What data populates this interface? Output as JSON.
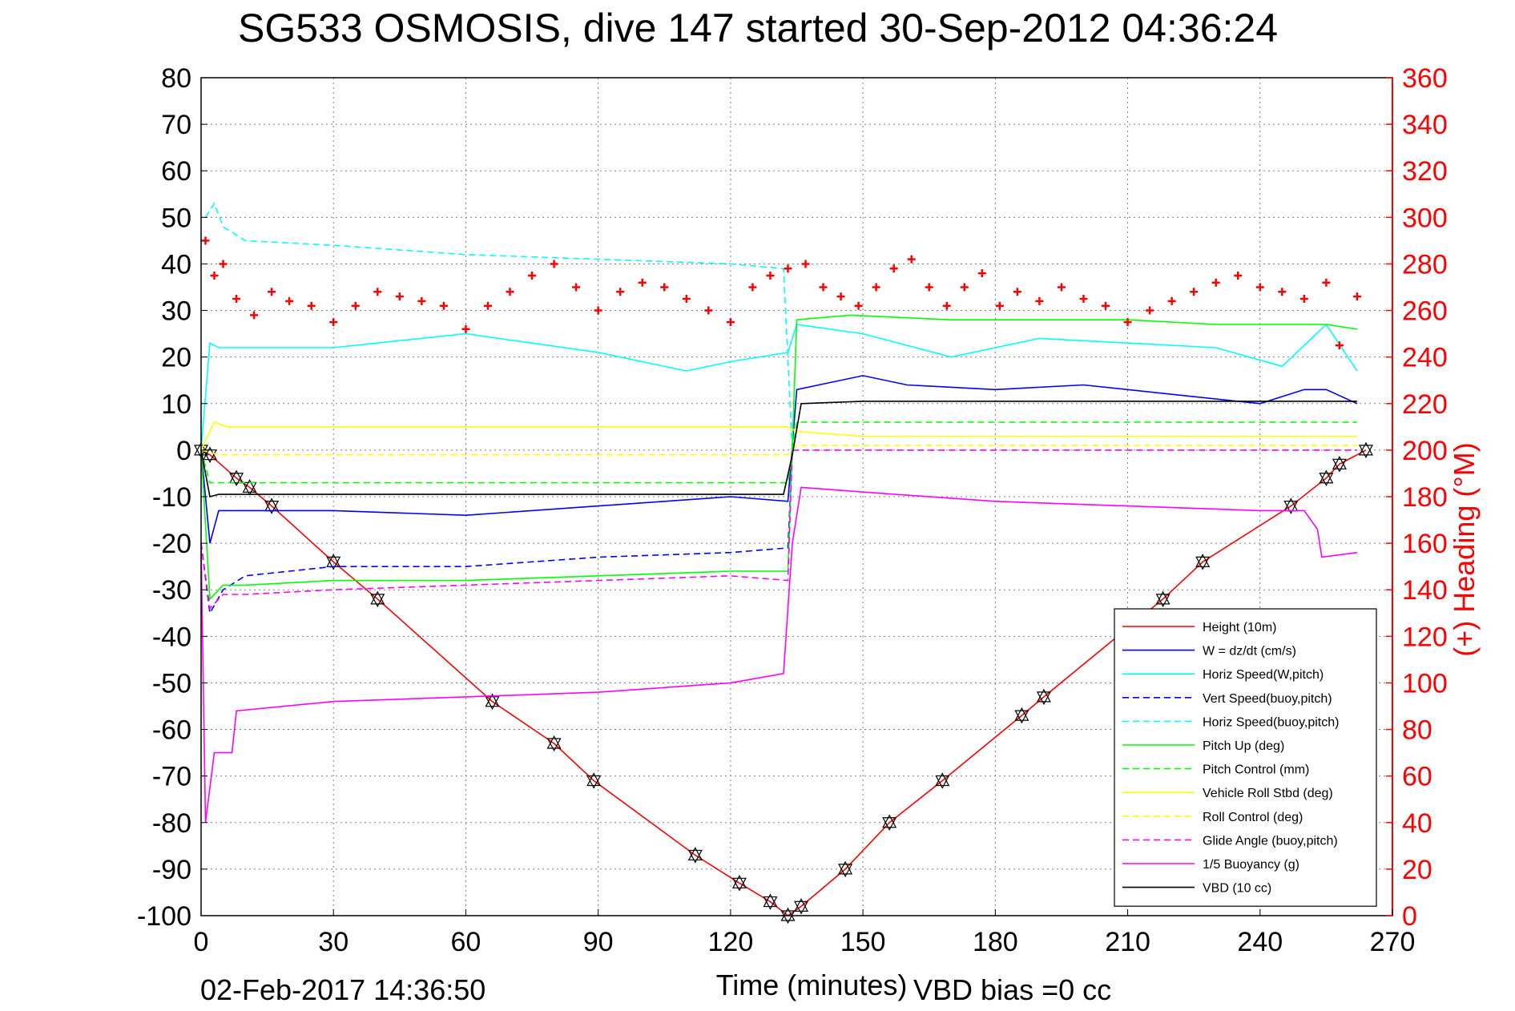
{
  "chart_data": {
    "type": "line",
    "title": "SG533 OSMOSIS, dive 147 started 30-Sep-2012 04:36:24",
    "xlabel": "Time (minutes)",
    "ylabel_right": "(+) Heading (°M)",
    "footer_date": "02-Feb-2017 14:36:50",
    "footer_note": "VBD bias =0 cc",
    "xlim": [
      0,
      270
    ],
    "ylim": [
      -100,
      80
    ],
    "ylim_right": [
      0,
      360
    ],
    "grid": true,
    "legend_position": "bottom-right",
    "x_ticks": [
      "0",
      "30",
      "60",
      "90",
      "120",
      "150",
      "180",
      "210",
      "240",
      "270"
    ],
    "y_ticks": [
      "80",
      "70",
      "60",
      "50",
      "40",
      "30",
      "20",
      "10",
      "0",
      "-10",
      "-20",
      "-30",
      "-40",
      "-50",
      "-60",
      "-70",
      "-80",
      "-90",
      "-100"
    ],
    "y_ticks_right": [
      "360",
      "340",
      "320",
      "300",
      "280",
      "260",
      "240",
      "220",
      "200",
      "180",
      "160",
      "140",
      "120",
      "100",
      "80",
      "60",
      "40",
      "20",
      "0"
    ],
    "series": [
      {
        "name": "Height (10m)",
        "color": "#ff0000",
        "style": "solid",
        "axis": "left",
        "x": [
          0,
          2,
          8,
          11,
          16,
          30,
          40,
          66,
          80,
          89,
          112,
          122,
          129,
          133,
          136,
          146,
          156,
          168,
          186,
          191,
          218,
          227,
          247,
          255,
          258,
          264
        ],
        "y": [
          0,
          -1,
          -6,
          -8,
          -12,
          -24,
          -32,
          -54,
          -63,
          -71,
          -87,
          -93,
          -97,
          -100,
          -98,
          -90,
          -80,
          -71,
          -57,
          -53,
          -32,
          -24,
          -12,
          -6,
          -3,
          0
        ]
      },
      {
        "name": "W = dz/dt (cm/s)",
        "color": "#0000ff",
        "style": "solid",
        "axis": "left",
        "x": [
          0,
          2,
          4,
          10,
          30,
          60,
          90,
          120,
          133,
          135,
          140,
          150,
          160,
          180,
          200,
          220,
          240,
          250,
          255,
          262
        ],
        "y": [
          0,
          -20,
          -13,
          -13,
          -13,
          -14,
          -12,
          -10,
          -11,
          13,
          14,
          16,
          14,
          13,
          14,
          12,
          10,
          13,
          13,
          10
        ]
      },
      {
        "name": "Horiz Speed(W,pitch)",
        "color": "#00ffff",
        "style": "solid",
        "axis": "left",
        "x": [
          0,
          2,
          4,
          10,
          30,
          60,
          90,
          110,
          120,
          133,
          135,
          150,
          170,
          190,
          210,
          230,
          245,
          255,
          262
        ],
        "y": [
          0,
          23,
          22,
          22,
          22,
          25,
          21,
          17,
          19,
          21,
          27,
          25,
          20,
          24,
          23,
          22,
          18,
          27,
          17
        ]
      },
      {
        "name": "Vert Speed(buoy,pitch)",
        "color": "#0000ff",
        "style": "dashed",
        "axis": "left",
        "x": [
          0,
          2,
          5,
          10,
          30,
          60,
          90,
          120,
          133,
          134
        ],
        "y": [
          -20,
          -35,
          -30,
          -27,
          -25,
          -25,
          -23,
          -22,
          -21,
          0
        ]
      },
      {
        "name": "Horiz Speed(buoy,pitch)",
        "color": "#00ffff",
        "style": "dashed",
        "axis": "left",
        "x": [
          1,
          3,
          5,
          10,
          30,
          60,
          90,
          120,
          132,
          134
        ],
        "y": [
          50,
          53,
          48,
          45,
          44,
          42,
          41,
          40,
          39,
          0
        ]
      },
      {
        "name": "Pitch Up (deg)",
        "color": "#00ff00",
        "style": "solid",
        "axis": "left",
        "x": [
          0,
          2,
          5,
          10,
          30,
          60,
          90,
          120,
          133,
          135,
          147,
          170,
          190,
          210,
          230,
          255,
          262
        ],
        "y": [
          0,
          -32,
          -29,
          -29,
          -28,
          -28,
          -27,
          -26,
          -26,
          28,
          29,
          28,
          28,
          28,
          27,
          27,
          26
        ]
      },
      {
        "name": "Pitch Control (mm)",
        "color": "#00ff00",
        "style": "dashed",
        "axis": "left",
        "x": [
          0,
          2,
          5,
          133,
          135,
          190,
          255,
          262
        ],
        "y": [
          0,
          -7,
          -7,
          -7,
          6,
          6,
          6,
          6
        ]
      },
      {
        "name": "Vehicle Roll Stbd (deg)",
        "color": "#ffff00",
        "style": "solid",
        "axis": "left",
        "x": [
          0,
          3,
          6,
          30,
          60,
          90,
          120,
          133,
          135,
          150,
          170,
          200,
          230,
          262
        ],
        "y": [
          0,
          6,
          5,
          5,
          5,
          5,
          5,
          5,
          4,
          3,
          3,
          3,
          3,
          3
        ]
      },
      {
        "name": "Roll Control (deg)",
        "color": "#ffff00",
        "style": "dashed",
        "axis": "left",
        "x": [
          0,
          4,
          133,
          135,
          262
        ],
        "y": [
          0,
          -1,
          -1,
          1,
          1
        ]
      },
      {
        "name": "Glide Angle (buoy,pitch)",
        "color": "#ff00ff",
        "style": "dashed",
        "axis": "left",
        "x": [
          0,
          2,
          5,
          10,
          30,
          60,
          90,
          120,
          133,
          134,
          262
        ],
        "y": [
          -20,
          -34,
          -31,
          -31,
          -30,
          -29,
          -28,
          -27,
          -28,
          0,
          0
        ]
      },
      {
        "name": "1/5 Buoyancy (g)",
        "color": "#ff00ff",
        "style": "solid",
        "axis": "left",
        "x": [
          0,
          1,
          3,
          7,
          8,
          30,
          60,
          90,
          120,
          132,
          134,
          136,
          150,
          180,
          210,
          240,
          250,
          253,
          254,
          262
        ],
        "y": [
          -20,
          -80,
          -65,
          -65,
          -56,
          -54,
          -53,
          -52,
          -50,
          -48,
          -20,
          -8,
          -9,
          -11,
          -12,
          -13,
          -13,
          -17,
          -23,
          -22
        ]
      },
      {
        "name": "VBD (10 cc)",
        "color": "#000000",
        "style": "solid",
        "axis": "left",
        "x": [
          0,
          2,
          4,
          132,
          134,
          136,
          150,
          180,
          210,
          240,
          262
        ],
        "y": [
          0,
          -10,
          -9.5,
          -9.5,
          -1,
          10,
          10.5,
          10.5,
          10.5,
          10.5,
          10.5
        ]
      },
      {
        "name": "Heading",
        "color": "#ff0000",
        "style": "markers",
        "axis": "right",
        "x": [
          1,
          3,
          5,
          8,
          12,
          16,
          20,
          25,
          30,
          35,
          40,
          45,
          50,
          55,
          60,
          65,
          70,
          75,
          80,
          85,
          90,
          95,
          100,
          105,
          110,
          115,
          120,
          125,
          129,
          133,
          137,
          141,
          145,
          149,
          153,
          157,
          161,
          165,
          169,
          173,
          177,
          181,
          185,
          190,
          195,
          200,
          205,
          210,
          215,
          220,
          225,
          230,
          235,
          240,
          245,
          250,
          255,
          258,
          262
        ],
        "y": [
          290,
          275,
          280,
          265,
          258,
          268,
          264,
          262,
          255,
          262,
          268,
          266,
          264,
          262,
          252,
          262,
          268,
          275,
          280,
          270,
          260,
          268,
          272,
          270,
          265,
          260,
          255,
          270,
          275,
          278,
          280,
          270,
          266,
          262,
          270,
          278,
          282,
          270,
          262,
          270,
          276,
          262,
          268,
          264,
          270,
          265,
          262,
          255,
          260,
          264,
          268,
          272,
          275,
          270,
          268,
          265,
          272,
          245,
          266
        ]
      }
    ]
  }
}
